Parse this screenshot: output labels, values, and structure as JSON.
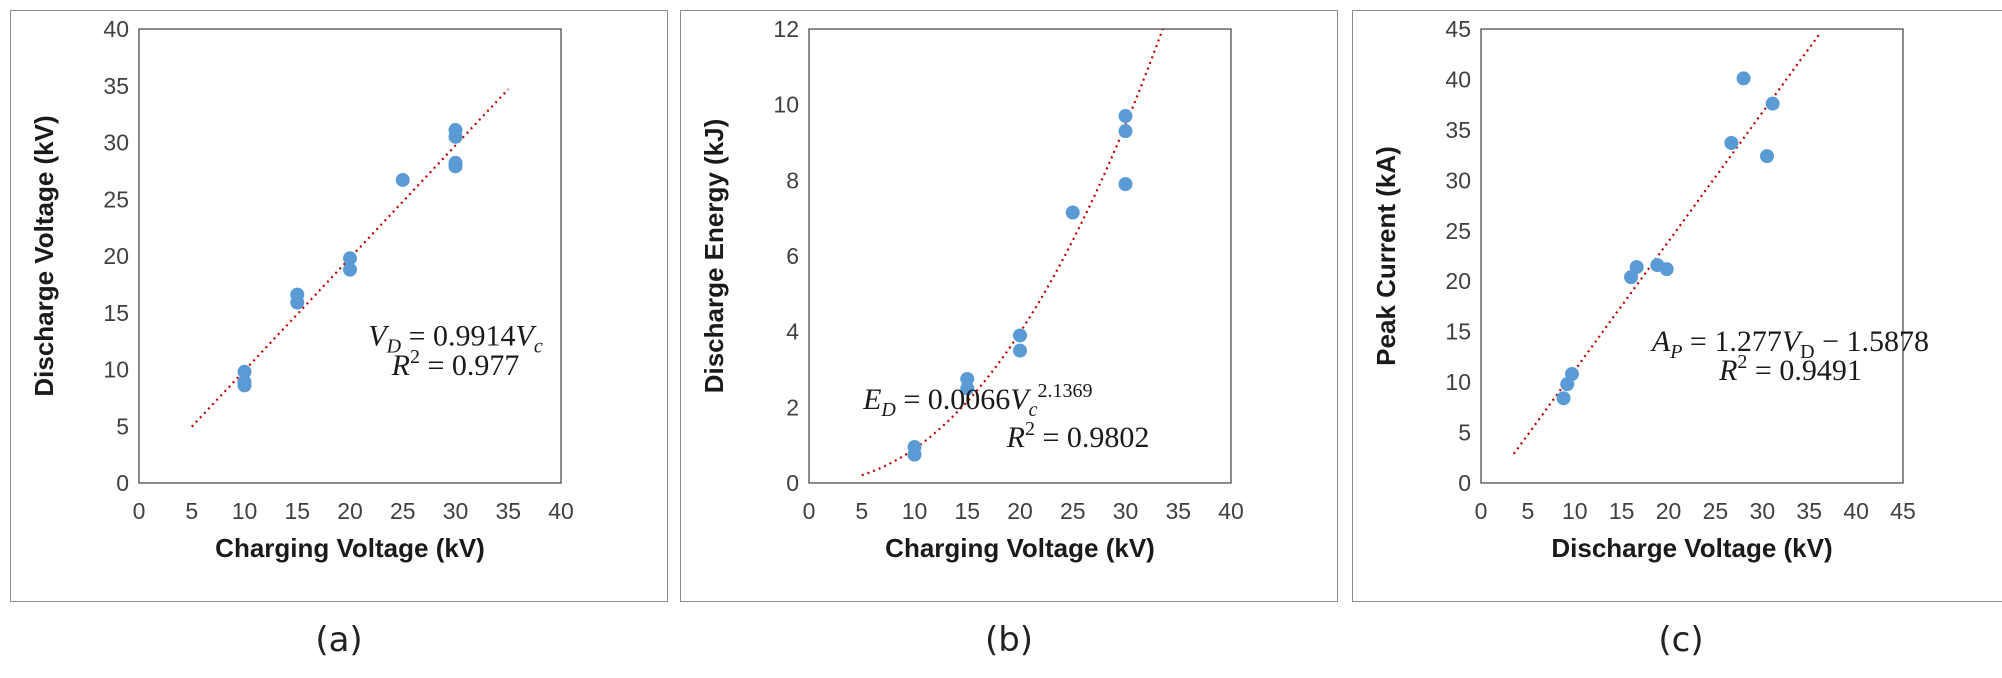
{
  "colors": {
    "point": "#5b9bd5",
    "trend": "#c00000",
    "frame": "#404040"
  },
  "chart_data": [
    {
      "type": "scatter",
      "panel_label": "(a)",
      "xlabel": "Charging Voltage (kV)",
      "ylabel": "Discharge Voltage (kV)",
      "xlim": [
        0,
        40
      ],
      "ylim": [
        0,
        40
      ],
      "xticks": [
        0,
        5,
        10,
        15,
        20,
        25,
        30,
        35,
        40
      ],
      "yticks": [
        0,
        5,
        10,
        15,
        20,
        25,
        30,
        35,
        40
      ],
      "x": [
        10,
        10,
        10,
        15,
        15,
        20,
        20,
        25,
        30,
        30,
        30,
        30
      ],
      "y": [
        9.8,
        8.9,
        8.6,
        16.6,
        15.9,
        19.8,
        18.8,
        26.7,
        31.1,
        30.5,
        28.2,
        27.9
      ],
      "trendline": {
        "model": "linear",
        "slope": 0.9914,
        "intercept": 0,
        "x_range": [
          5,
          35
        ]
      },
      "equation_lines": [
        [
          {
            "t": "V",
            "i": true
          },
          {
            "t": "D",
            "i": true,
            "sub": true
          },
          {
            "t": " = 0.9914"
          },
          {
            "t": "V",
            "i": true
          },
          {
            "t": "c",
            "i": true,
            "sub": true
          }
        ],
        [
          {
            "t": "R",
            "i": true
          },
          {
            "t": "2",
            "sup": true
          },
          {
            "t": " = 0.977"
          }
        ]
      ],
      "equation_pos": [
        30,
        12.1,
        30,
        9.5
      ]
    },
    {
      "type": "scatter",
      "panel_label": "(b)",
      "xlabel": "Charging Voltage (kV)",
      "ylabel": "Discharge Energy (kJ)",
      "xlim": [
        0,
        40
      ],
      "ylim": [
        0,
        12
      ],
      "xticks": [
        0,
        5,
        10,
        15,
        20,
        25,
        30,
        35,
        40
      ],
      "yticks": [
        0,
        2,
        4,
        6,
        8,
        10,
        12
      ],
      "x": [
        10,
        10,
        15,
        15,
        20,
        20,
        25,
        30,
        30,
        30
      ],
      "y": [
        0.95,
        0.75,
        2.75,
        2.5,
        3.9,
        3.5,
        7.15,
        9.7,
        9.3,
        7.9
      ],
      "trendline": {
        "model": "power",
        "coef": 0.0066,
        "exponent": 2.1369,
        "x_range": [
          5,
          34
        ]
      },
      "equation_lines": [
        [
          {
            "t": "E",
            "i": true
          },
          {
            "t": "D",
            "i": true,
            "sub": true
          },
          {
            "t": " = 0.0066"
          },
          {
            "t": "V",
            "i": true
          },
          {
            "t": "c",
            "i": true,
            "sub": true
          },
          {
            "t": "2.1369",
            "sup": true
          }
        ],
        [
          {
            "t": "R",
            "i": true
          },
          {
            "t": "2",
            "sup": true
          },
          {
            "t": " = 0.9802"
          }
        ]
      ],
      "equation_pos": [
        16,
        1.95,
        25.5,
        0.95
      ]
    },
    {
      "type": "scatter",
      "panel_label": "(c)",
      "xlabel": "Discharge Voltage (kV)",
      "ylabel": "Peak Current (kA)",
      "xlim": [
        0,
        45
      ],
      "ylim": [
        0,
        45
      ],
      "xticks": [
        0,
        5,
        10,
        15,
        20,
        25,
        30,
        35,
        40,
        45
      ],
      "yticks": [
        0,
        5,
        10,
        15,
        20,
        25,
        30,
        35,
        40,
        45
      ],
      "x": [
        8.8,
        9.2,
        9.7,
        16.0,
        16.6,
        18.8,
        19.8,
        26.7,
        28.0,
        30.5,
        31.1
      ],
      "y": [
        8.4,
        9.8,
        10.8,
        20.4,
        21.4,
        21.6,
        21.2,
        33.7,
        40.1,
        32.4,
        37.6
      ],
      "trendline": {
        "model": "linear",
        "slope": 1.277,
        "intercept": -1.5878,
        "x_range": [
          3.5,
          36.2
        ]
      },
      "equation_lines": [
        [
          {
            "t": "A",
            "i": true
          },
          {
            "t": "P",
            "i": true,
            "sub": true
          },
          {
            "t": " = 1.277"
          },
          {
            "t": "V",
            "i": true
          },
          {
            "t": "D",
            "sub": true
          },
          {
            "t": " − 1.5878"
          }
        ],
        [
          {
            "t": "R",
            "i": true
          },
          {
            "t": "2",
            "sup": true
          },
          {
            "t": " = 0.9491"
          }
        ]
      ],
      "equation_pos": [
        33,
        13.1,
        33,
        10.2
      ]
    }
  ]
}
